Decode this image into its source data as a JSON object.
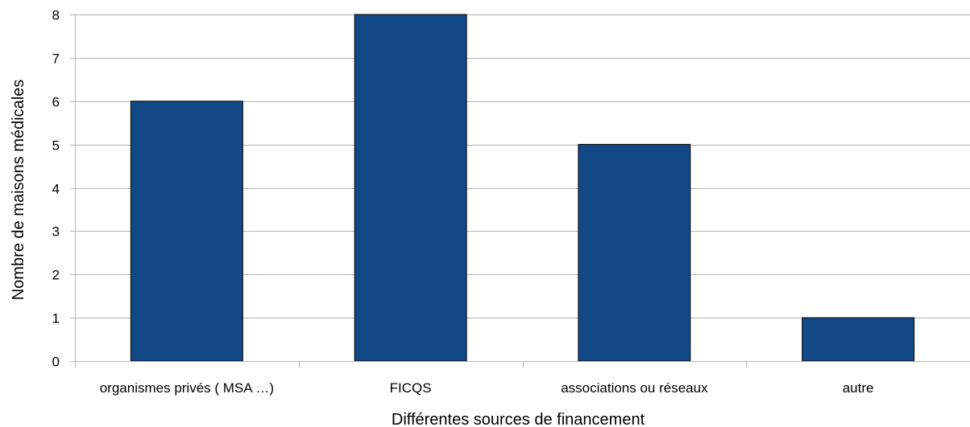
{
  "chart_data": {
    "type": "bar",
    "categories": [
      "organismes privés ( MSA …)",
      "FICQS",
      "associations ou réseaux",
      "autre"
    ],
    "values": [
      6,
      8,
      5,
      1
    ],
    "title": "",
    "xlabel": "Différentes sources de financement",
    "ylabel": "Nombre de maisons médicales",
    "ylim": [
      0,
      8
    ],
    "yticks": [
      0,
      1,
      2,
      3,
      4,
      5,
      6,
      7,
      8
    ],
    "grid": true,
    "bar_color": "#134886"
  }
}
